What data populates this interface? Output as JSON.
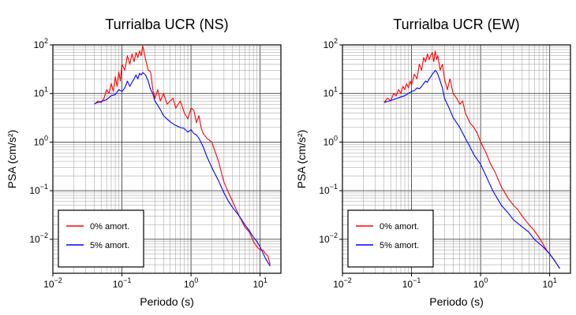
{
  "chart_data": [
    {
      "type": "line",
      "title": "Turrialba UCR (NS)",
      "xlabel": "Periodo (s)",
      "ylabel": "PSA (cm/s²)",
      "xscale": "log",
      "yscale": "log",
      "xlim": [
        0.01,
        20
      ],
      "ylim": [
        0.002,
        100
      ],
      "grid": true,
      "legend_position": "bottom-left",
      "series": [
        {
          "name": "0% amort.",
          "color": "#ff0000",
          "x": [
            0.04,
            0.045,
            0.05,
            0.055,
            0.06,
            0.065,
            0.07,
            0.075,
            0.08,
            0.085,
            0.09,
            0.095,
            0.1,
            0.11,
            0.12,
            0.13,
            0.14,
            0.15,
            0.16,
            0.17,
            0.18,
            0.19,
            0.2,
            0.21,
            0.22,
            0.24,
            0.26,
            0.28,
            0.3,
            0.33,
            0.36,
            0.4,
            0.45,
            0.5,
            0.55,
            0.6,
            0.7,
            0.8,
            0.9,
            1.0,
            1.1,
            1.2,
            1.3,
            1.4,
            1.5,
            1.7,
            2.0,
            2.5,
            3.0,
            3.5,
            4.0,
            5.0,
            6.0,
            7.0,
            8.0,
            9.0,
            10.0,
            11.0,
            12.0,
            13.0,
            14.0
          ],
          "y": [
            6,
            7,
            6.5,
            8,
            12,
            10,
            16,
            11,
            22,
            14,
            28,
            18,
            40,
            30,
            60,
            40,
            65,
            45,
            70,
            55,
            75,
            60,
            95,
            70,
            50,
            30,
            28,
            12,
            8,
            12,
            7,
            10,
            6,
            7,
            8,
            5,
            7,
            4,
            3,
            5,
            4.5,
            2.5,
            3.5,
            2,
            1.5,
            1.2,
            1,
            0.4,
            0.15,
            0.09,
            0.06,
            0.03,
            0.018,
            0.014,
            0.009,
            0.007,
            0.006,
            0.006,
            0.005,
            0.0045,
            0.003
          ]
        },
        {
          "name": "5% amort.",
          "color": "#0000ff",
          "x": [
            0.04,
            0.05,
            0.06,
            0.07,
            0.08,
            0.09,
            0.1,
            0.11,
            0.12,
            0.13,
            0.14,
            0.15,
            0.16,
            0.17,
            0.18,
            0.19,
            0.2,
            0.22,
            0.24,
            0.26,
            0.28,
            0.3,
            0.35,
            0.4,
            0.5,
            0.6,
            0.7,
            0.8,
            0.9,
            1.0,
            1.1,
            1.2,
            1.3,
            1.5,
            1.7,
            2.0,
            2.5,
            3.0,
            3.5,
            4.0,
            5.0,
            6.0,
            7.0,
            8.0,
            9.0,
            10.0,
            12.0,
            14.0
          ],
          "y": [
            6.2,
            6.8,
            7.5,
            9,
            9.5,
            12,
            11,
            13,
            18,
            14,
            17,
            20,
            24,
            20,
            26,
            24,
            27,
            24,
            18,
            12,
            10,
            7,
            5,
            3.5,
            2.6,
            2.2,
            2,
            1.9,
            1.6,
            1.8,
            1.5,
            1.4,
            1.2,
            0.8,
            0.5,
            0.3,
            0.16,
            0.09,
            0.06,
            0.045,
            0.03,
            0.02,
            0.015,
            0.011,
            0.009,
            0.007,
            0.004,
            0.0028
          ]
        }
      ]
    },
    {
      "type": "line",
      "title": "Turrialba UCR (EW)",
      "xlabel": "Periodo (s)",
      "ylabel": "PSA (cm/s²)",
      "xscale": "log",
      "yscale": "log",
      "xlim": [
        0.01,
        20
      ],
      "ylim": [
        0.002,
        100
      ],
      "grid": true,
      "legend_position": "bottom-left",
      "series": [
        {
          "name": "0% amort.",
          "color": "#ff0000",
          "x": [
            0.04,
            0.045,
            0.05,
            0.055,
            0.06,
            0.065,
            0.07,
            0.075,
            0.08,
            0.085,
            0.09,
            0.095,
            0.1,
            0.11,
            0.12,
            0.13,
            0.14,
            0.15,
            0.16,
            0.17,
            0.18,
            0.19,
            0.2,
            0.21,
            0.22,
            0.23,
            0.24,
            0.26,
            0.28,
            0.3,
            0.33,
            0.36,
            0.4,
            0.45,
            0.5,
            0.55,
            0.6,
            0.7,
            0.8,
            0.9,
            1.0,
            1.2,
            1.4,
            1.6,
            2.0,
            2.5,
            3.0,
            3.5,
            4.0,
            5.0,
            6.0,
            7.0,
            8.0,
            9.0,
            10.0,
            12.0,
            14.0
          ],
          "y": [
            6.5,
            8,
            7,
            10,
            9,
            12,
            10,
            14,
            12,
            16,
            13,
            18,
            15,
            25,
            20,
            40,
            30,
            55,
            45,
            65,
            50,
            60,
            70,
            45,
            75,
            50,
            60,
            30,
            40,
            20,
            12,
            20,
            10,
            8,
            6,
            7,
            4,
            2.5,
            2,
            1.5,
            1,
            0.6,
            0.35,
            0.25,
            0.12,
            0.07,
            0.05,
            0.04,
            0.03,
            0.02,
            0.015,
            0.011,
            0.008,
            0.006,
            0.005,
            0.0035,
            0.0025
          ]
        },
        {
          "name": "5% amort.",
          "color": "#0000ff",
          "x": [
            0.04,
            0.05,
            0.06,
            0.07,
            0.08,
            0.09,
            0.1,
            0.11,
            0.12,
            0.13,
            0.14,
            0.15,
            0.16,
            0.17,
            0.18,
            0.19,
            0.2,
            0.21,
            0.22,
            0.23,
            0.24,
            0.26,
            0.28,
            0.3,
            0.35,
            0.4,
            0.5,
            0.6,
            0.7,
            0.8,
            1.0,
            1.2,
            1.5,
            2.0,
            2.5,
            3.0,
            4.0,
            5.0,
            6.0,
            8.0,
            10.0,
            12.0,
            14.0
          ],
          "y": [
            6.5,
            7.2,
            7.8,
            8.5,
            9,
            10,
            11,
            11.5,
            13,
            12.5,
            14,
            16,
            18,
            17,
            20,
            22,
            25,
            27,
            30,
            28,
            25,
            18,
            13,
            8,
            5,
            3.2,
            2,
            1.2,
            0.8,
            0.55,
            0.35,
            0.2,
            0.1,
            0.05,
            0.035,
            0.025,
            0.018,
            0.014,
            0.01,
            0.007,
            0.005,
            0.0035,
            0.0025
          ]
        }
      ]
    }
  ]
}
